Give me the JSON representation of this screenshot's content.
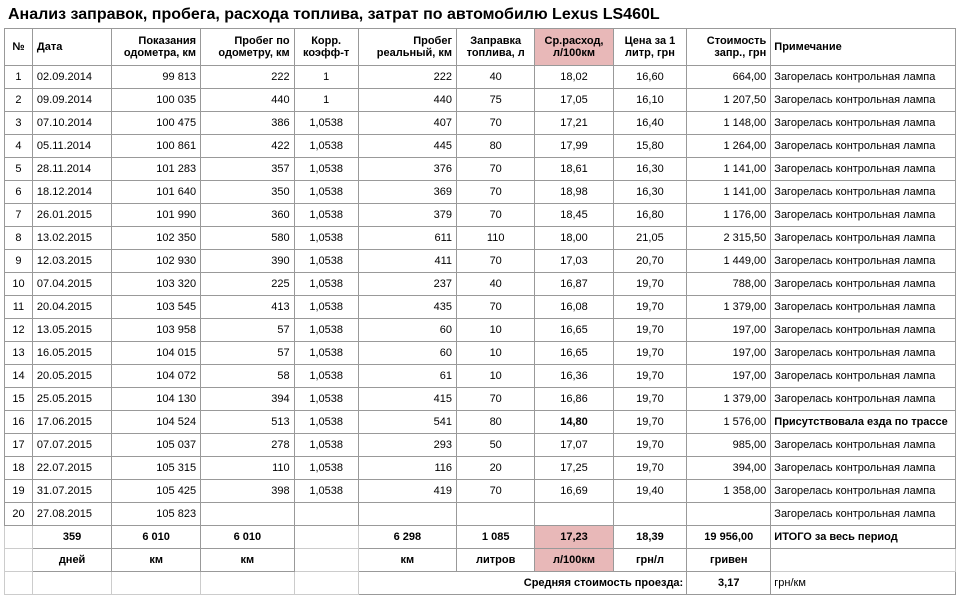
{
  "title": "Анализ заправок, пробега, расхода топлива, затрат по автомобилю Lexus LS460L",
  "headers": {
    "num": "№",
    "date": "Дата",
    "odo": "Показания одометра, км",
    "run": "Пробег по одометру, км",
    "coef": "Корр. коэфф-т",
    "real": "Пробег реальный, км",
    "fuel": "Заправка топлива, л",
    "cons": "Ср.расход, л/100км",
    "price": "Цена за 1 литр, грн",
    "cost": "Стоимость запр., грн",
    "note": "Примечание"
  },
  "rows": [
    {
      "n": "1",
      "date": "02.09.2014",
      "odo": "99 813",
      "run": "222",
      "coef": "1",
      "real": "222",
      "fuel": "40",
      "cons": "18,02",
      "price": "16,60",
      "cost": "664,00",
      "note": "Загорелась контрольная лампа"
    },
    {
      "n": "2",
      "date": "09.09.2014",
      "odo": "100 035",
      "run": "440",
      "coef": "1",
      "real": "440",
      "fuel": "75",
      "cons": "17,05",
      "price": "16,10",
      "cost": "1 207,50",
      "note": "Загорелась контрольная лампа"
    },
    {
      "n": "3",
      "date": "07.10.2014",
      "odo": "100 475",
      "run": "386",
      "coef": "1,0538",
      "real": "407",
      "fuel": "70",
      "cons": "17,21",
      "price": "16,40",
      "cost": "1 148,00",
      "note": "Загорелась контрольная лампа"
    },
    {
      "n": "4",
      "date": "05.11.2014",
      "odo": "100 861",
      "run": "422",
      "coef": "1,0538",
      "real": "445",
      "fuel": "80",
      "cons": "17,99",
      "price": "15,80",
      "cost": "1 264,00",
      "note": "Загорелась контрольная лампа"
    },
    {
      "n": "5",
      "date": "28.11.2014",
      "odo": "101 283",
      "run": "357",
      "coef": "1,0538",
      "real": "376",
      "fuel": "70",
      "cons": "18,61",
      "price": "16,30",
      "cost": "1 141,00",
      "note": "Загорелась контрольная лампа"
    },
    {
      "n": "6",
      "date": "18.12.2014",
      "odo": "101 640",
      "run": "350",
      "coef": "1,0538",
      "real": "369",
      "fuel": "70",
      "cons": "18,98",
      "price": "16,30",
      "cost": "1 141,00",
      "note": "Загорелась контрольная лампа"
    },
    {
      "n": "7",
      "date": "26.01.2015",
      "odo": "101 990",
      "run": "360",
      "coef": "1,0538",
      "real": "379",
      "fuel": "70",
      "cons": "18,45",
      "price": "16,80",
      "cost": "1 176,00",
      "note": "Загорелась контрольная лампа"
    },
    {
      "n": "8",
      "date": "13.02.2015",
      "odo": "102 350",
      "run": "580",
      "coef": "1,0538",
      "real": "611",
      "fuel": "110",
      "cons": "18,00",
      "price": "21,05",
      "cost": "2 315,50",
      "note": "Загорелась контрольная лампа"
    },
    {
      "n": "9",
      "date": "12.03.2015",
      "odo": "102 930",
      "run": "390",
      "coef": "1,0538",
      "real": "411",
      "fuel": "70",
      "cons": "17,03",
      "price": "20,70",
      "cost": "1 449,00",
      "note": "Загорелась контрольная лампа"
    },
    {
      "n": "10",
      "date": "07.04.2015",
      "odo": "103 320",
      "run": "225",
      "coef": "1,0538",
      "real": "237",
      "fuel": "40",
      "cons": "16,87",
      "price": "19,70",
      "cost": "788,00",
      "note": "Загорелась контрольная лампа"
    },
    {
      "n": "11",
      "date": "20.04.2015",
      "odo": "103 545",
      "run": "413",
      "coef": "1,0538",
      "real": "435",
      "fuel": "70",
      "cons": "16,08",
      "price": "19,70",
      "cost": "1 379,00",
      "note": "Загорелась контрольная лампа"
    },
    {
      "n": "12",
      "date": "13.05.2015",
      "odo": "103 958",
      "run": "57",
      "coef": "1,0538",
      "real": "60",
      "fuel": "10",
      "cons": "16,65",
      "price": "19,70",
      "cost": "197,00",
      "note": "Загорелась контрольная лампа"
    },
    {
      "n": "13",
      "date": "16.05.2015",
      "odo": "104 015",
      "run": "57",
      "coef": "1,0538",
      "real": "60",
      "fuel": "10",
      "cons": "16,65",
      "price": "19,70",
      "cost": "197,00",
      "note": "Загорелась контрольная лампа"
    },
    {
      "n": "14",
      "date": "20.05.2015",
      "odo": "104 072",
      "run": "58",
      "coef": "1,0538",
      "real": "61",
      "fuel": "10",
      "cons": "16,36",
      "price": "19,70",
      "cost": "197,00",
      "note": "Загорелась контрольная лампа"
    },
    {
      "n": "15",
      "date": "25.05.2015",
      "odo": "104 130",
      "run": "394",
      "coef": "1,0538",
      "real": "415",
      "fuel": "70",
      "cons": "16,86",
      "price": "19,70",
      "cost": "1 379,00",
      "note": "Загорелась контрольная лампа"
    },
    {
      "n": "16",
      "date": "17.06.2015",
      "odo": "104 524",
      "run": "513",
      "coef": "1,0538",
      "real": "541",
      "fuel": "80",
      "cons": "14,80",
      "price": "19,70",
      "cost": "1 576,00",
      "note": "Присутствовала езда по трассе"
    },
    {
      "n": "17",
      "date": "07.07.2015",
      "odo": "105 037",
      "run": "278",
      "coef": "1,0538",
      "real": "293",
      "fuel": "50",
      "cons": "17,07",
      "price": "19,70",
      "cost": "985,00",
      "note": "Загорелась контрольная лампа"
    },
    {
      "n": "18",
      "date": "22.07.2015",
      "odo": "105 315",
      "run": "110",
      "coef": "1,0538",
      "real": "116",
      "fuel": "20",
      "cons": "17,25",
      "price": "19,70",
      "cost": "394,00",
      "note": "Загорелась контрольная лампа"
    },
    {
      "n": "19",
      "date": "31.07.2015",
      "odo": "105 425",
      "run": "398",
      "coef": "1,0538",
      "real": "419",
      "fuel": "70",
      "cons": "16,69",
      "price": "19,40",
      "cost": "1 358,00",
      "note": "Загорелась контрольная лампа"
    },
    {
      "n": "20",
      "date": "27.08.2015",
      "odo": "105 823",
      "run": "",
      "coef": "",
      "real": "",
      "fuel": "",
      "cons": "",
      "price": "",
      "cost": "",
      "note": "Загорелась контрольная лампа"
    }
  ],
  "totals": {
    "days": "359",
    "odo": "6 010",
    "run": "6 010",
    "real": "6 298",
    "fuel": "1 085",
    "cons": "17,23",
    "price": "18,39",
    "cost": "19 956,00",
    "note": "ИТОГО за весь период"
  },
  "units": {
    "days": "дней",
    "odo": "км",
    "run": "км",
    "real": "км",
    "fuel": "литров",
    "cons": "л/100км",
    "price": "грн/л",
    "cost": "гривен"
  },
  "avg": {
    "label": "Средняя стоимость проезда:",
    "value": "3,17",
    "unit": "грн/км"
  },
  "highlight_color": "#e8b8b8"
}
